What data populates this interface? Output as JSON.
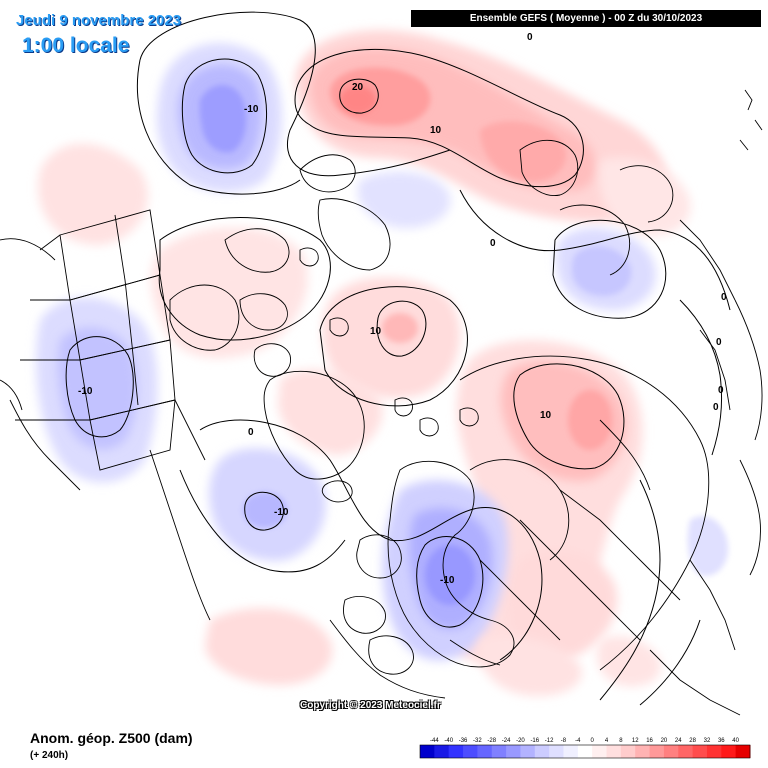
{
  "header": {
    "date_text": "Jeudi 9 novembre 2023",
    "time_text": "1:00 locale",
    "model_run": "Ensemble GEFS  ( Moyenne )  -  00 Z du 30/10/2023"
  },
  "footer": {
    "copyright": "Copyright © 2023 Meteociel.fr",
    "variable_title": "Anom. géop. Z500 (dam)",
    "lead_time": "(+ 240h)"
  },
  "contour_labels": [
    {
      "id": "pos-20-north-pacific",
      "text": "20"
    },
    {
      "id": "pos-10-north-pacific",
      "text": "10"
    },
    {
      "id": "neg-10-bering",
      "text": "-10"
    },
    {
      "id": "zero-north",
      "text": "0"
    },
    {
      "id": "zero-east-asia",
      "text": "0"
    },
    {
      "id": "pos-10-arctic",
      "text": "10"
    },
    {
      "id": "pos-10-siberia",
      "text": "10"
    },
    {
      "id": "neg-10-north-america",
      "text": "-10"
    },
    {
      "id": "zero-atlantic",
      "text": "0"
    },
    {
      "id": "neg-10-north-atlantic",
      "text": "-10"
    },
    {
      "id": "neg-10-europe",
      "text": "-10"
    },
    {
      "id": "zero-east-1",
      "text": "0"
    },
    {
      "id": "zero-east-2",
      "text": "0"
    },
    {
      "id": "zero-east-3",
      "text": "0"
    },
    {
      "id": "zero-east-4",
      "text": "0"
    }
  ],
  "colorbar": {
    "ticks": [
      "-44",
      "-40",
      "-36",
      "-32",
      "-28",
      "-24",
      "-20",
      "-16",
      "-12",
      "-8",
      "-4",
      "0",
      "4",
      "8",
      "12",
      "16",
      "20",
      "24",
      "28",
      "32",
      "36",
      "40"
    ],
    "colors": [
      "#0000cc",
      "#1a1ae6",
      "#3333ff",
      "#4d4dff",
      "#6666ff",
      "#8080ff",
      "#9999ff",
      "#b3b3ff",
      "#ccccff",
      "#dfdfff",
      "#f0f0ff",
      "#ffffff",
      "#fff0f0",
      "#ffdfdf",
      "#ffcccc",
      "#ffb3b3",
      "#ff9999",
      "#ff8080",
      "#ff6666",
      "#ff4d4d",
      "#ff3333",
      "#ff1a1a",
      "#e60000"
    ]
  },
  "chart_data": {
    "type": "heatmap",
    "variable": "Anom. géop. Z500 (dam)",
    "lead_time": "(+ 240h)",
    "colorbar_range": [
      -44,
      40
    ],
    "colorbar_step": 4,
    "contour_values": [
      -10,
      0,
      10,
      20
    ]
  }
}
